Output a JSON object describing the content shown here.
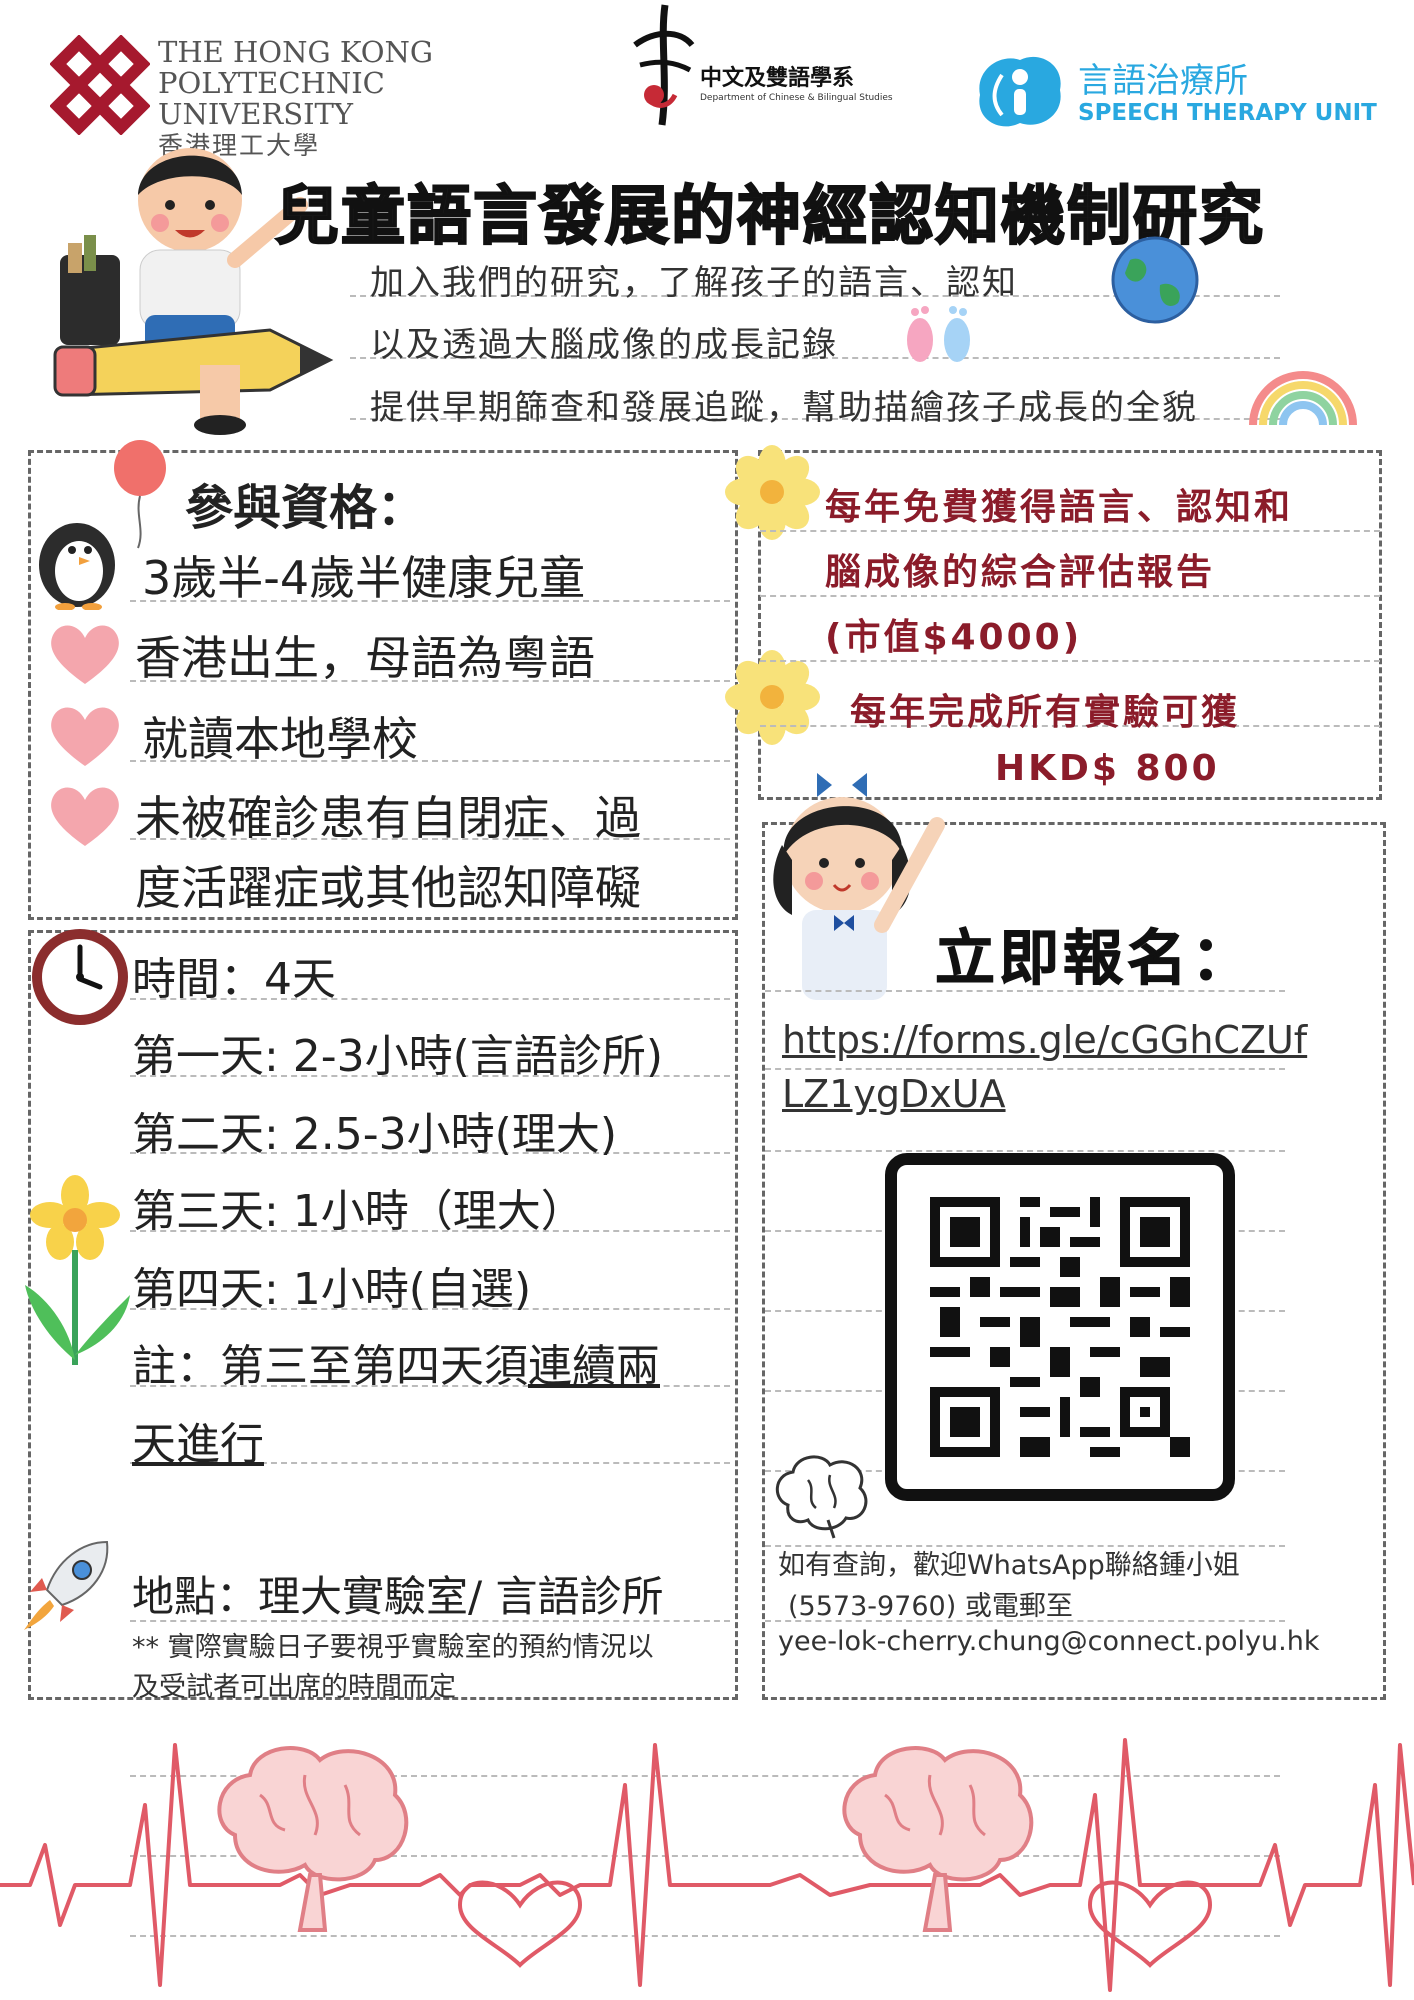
{
  "header": {
    "polyu": {
      "en_line1": "THE HONG KONG",
      "en_line2": "POLYTECHNIC UNIVERSITY",
      "zh": "香港理工大學"
    },
    "dept": {
      "zh": "中文及雙語學系",
      "en": "Department of Chinese & Bilingual Studies"
    },
    "stu": {
      "zh": "言語治療所",
      "en": "SPEECH THERAPY UNIT"
    }
  },
  "title": "兒童語言發展的神經認知機制研究",
  "intro": [
    "加入我們的研究，了解孩子的語言、認知",
    "以及透過大腦成像的成長記錄",
    "提供早期篩查和發展追蹤，幫助描繪孩子成長的全貌"
  ],
  "eligibility": {
    "heading": "參與資格：",
    "items": [
      "3歲半-4歲半健康兒童",
      "香港出生，母語為粵語",
      "就讀本地學校",
      "未被確診患有自閉症、過",
      "度活躍症或其他認知障礙"
    ]
  },
  "benefits": {
    "line1": "每年免費獲得語言、認知和",
    "line2": "腦成像的綜合評估報告",
    "line3": "(市值$4000)",
    "line4": "每年完成所有實驗可獲",
    "line5": "HKD$ 800"
  },
  "schedule": {
    "time": "時間：4天",
    "day1": "第一天: 2-3小時(言語診所)",
    "day2": "第二天: 2.5-3小時(理大)",
    "day3": "第三天: 1小時（理大）",
    "day4": "第四天: 1小時(自選)",
    "note_a": "註：第三至第四天須",
    "note_b": "連續兩",
    "note_c": "天進行",
    "location": "地點：理大實驗室/ 言語診所",
    "footnote1": "** 實際實驗日子要視乎實驗室的預約情況以",
    "footnote2": "及受試者可出席的時間而定"
  },
  "register": {
    "heading": "立即報名：",
    "link1": "https://forms.gle/cGGhCZUf",
    "link2": "LZ1ygDxUA"
  },
  "contact": {
    "line1": "如有查詢，歡迎WhatsApp聯絡鍾小姐",
    "line2": "(5573-9760) 或電郵至",
    "line3": "yee-lok-cherry.chung@connect.polyu.hk"
  },
  "colors": {
    "polyu_red": "#a6192e",
    "benefit_red": "#8b1c2a",
    "stu_blue": "#29a8e0",
    "heartbeat": "#e05a67",
    "heart_pink": "#f4a6ad"
  },
  "icons": [
    "polyu-logo-icon",
    "dept-logo-icon",
    "stu-logo-icon",
    "boy-on-pencil-icon",
    "globe-icon",
    "footprints-icon",
    "rainbow-icon",
    "balloon-icon",
    "penguin-icon",
    "heart-icon",
    "flower-icon",
    "girl-waving-icon",
    "clock-icon",
    "tulip-icon",
    "rocket-icon",
    "brain-icon",
    "qr-code-icon",
    "heartbeat-icon"
  ]
}
